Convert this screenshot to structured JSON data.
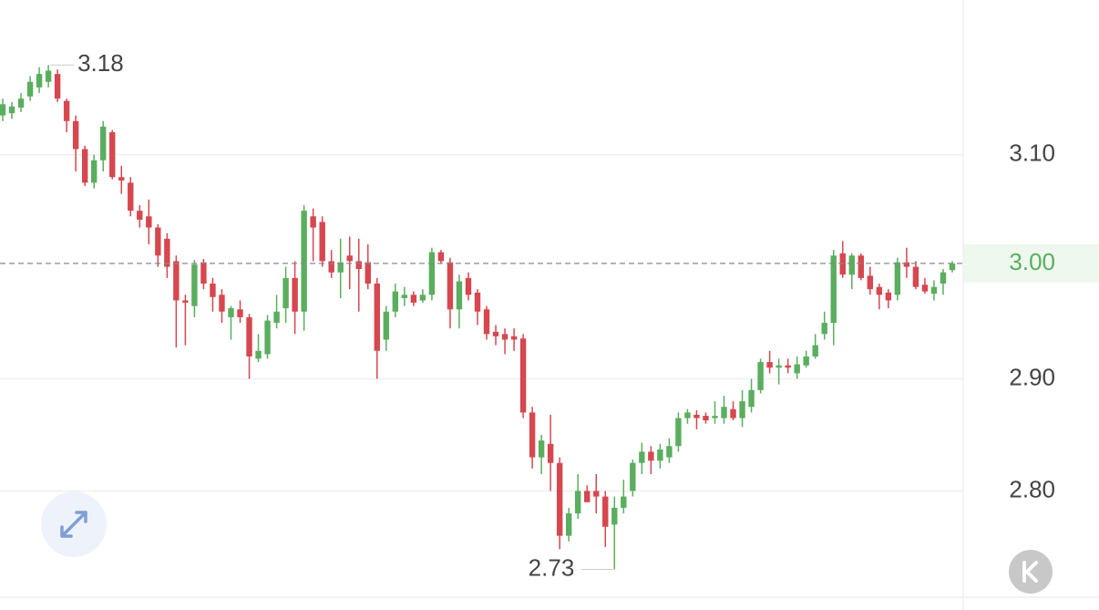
{
  "chart_data": {
    "type": "candlestick",
    "open": [
      3.135,
      3.137,
      3.142,
      3.152,
      3.16,
      3.165,
      3.172,
      3.148,
      3.13,
      3.105,
      3.075,
      3.095,
      3.12,
      3.08,
      3.075,
      3.05,
      3.045,
      3.035,
      3.025,
      3.005,
      2.97,
      2.965,
      3.004,
      2.985,
      2.975,
      2.955,
      2.962,
      2.955,
      2.918,
      2.922,
      2.95,
      2.963,
      2.99,
      2.96,
      3.045,
      3.04,
      3.005,
      2.995,
      3.01,
      3.005,
      3.004,
      2.985,
      2.935,
      2.96,
      2.972,
      2.975,
      2.97,
      2.975,
      3.013,
      3.004,
      2.962,
      2.99,
      2.977,
      2.962,
      2.942,
      2.94,
      2.938,
      2.936,
      2.87,
      2.83,
      2.842,
      2.825,
      2.76,
      2.78,
      2.8,
      2.8,
      2.795,
      2.77,
      2.785,
      2.8,
      2.825,
      2.835,
      2.827,
      2.83,
      2.84,
      2.865,
      2.868,
      2.867,
      2.865,
      2.865,
      2.873,
      2.865,
      2.875,
      2.89,
      2.915,
      2.91,
      2.912,
      2.905,
      2.912,
      2.92,
      2.94,
      2.95,
      3.012,
      2.993,
      3.01,
      2.992,
      2.982,
      2.977,
      2.975,
      3.004,
      3.0,
      2.984,
      2.976,
      2.985,
      2.997
    ],
    "high": [
      3.15,
      3.147,
      3.155,
      3.17,
      3.178,
      3.18,
      3.176,
      3.15,
      3.135,
      3.108,
      3.1,
      3.13,
      3.122,
      3.09,
      3.08,
      3.055,
      3.06,
      3.038,
      3.03,
      3.01,
      2.975,
      3.006,
      3.007,
      2.99,
      2.98,
      2.965,
      2.97,
      2.958,
      2.94,
      2.957,
      2.975,
      3.0,
      3.005,
      3.055,
      3.052,
      3.045,
      3.015,
      3.025,
      3.027,
      3.025,
      3.02,
      2.99,
      2.965,
      2.985,
      2.982,
      2.978,
      2.98,
      3.017,
      3.015,
      3.008,
      2.993,
      2.995,
      2.98,
      2.965,
      2.948,
      2.945,
      2.945,
      2.94,
      2.875,
      2.85,
      2.868,
      2.83,
      2.785,
      2.815,
      2.805,
      2.815,
      2.8,
      2.795,
      2.81,
      2.828,
      2.843,
      2.84,
      2.842,
      2.847,
      2.87,
      2.873,
      2.872,
      2.87,
      2.88,
      2.885,
      2.88,
      2.89,
      2.9,
      2.918,
      2.925,
      2.918,
      2.918,
      2.92,
      2.925,
      2.94,
      2.96,
      3.015,
      3.023,
      3.012,
      3.012,
      3.0,
      2.985,
      2.98,
      3.008,
      3.017,
      3.005,
      2.99,
      2.988,
      2.998,
      3.005
    ],
    "low": [
      3.13,
      3.132,
      3.138,
      3.148,
      3.155,
      3.16,
      3.147,
      3.12,
      3.085,
      3.072,
      3.07,
      3.085,
      3.078,
      3.065,
      3.045,
      3.035,
      3.02,
      3.0,
      2.99,
      2.928,
      2.93,
      2.955,
      2.98,
      2.96,
      2.95,
      2.935,
      2.95,
      2.9,
      2.915,
      2.918,
      2.945,
      2.95,
      2.94,
      2.943,
      3.005,
      3.0,
      2.99,
      2.972,
      2.98,
      2.96,
      2.98,
      2.9,
      2.925,
      2.955,
      2.965,
      2.965,
      2.968,
      2.97,
      3.003,
      2.945,
      2.945,
      2.97,
      2.948,
      2.935,
      2.93,
      2.922,
      2.925,
      2.865,
      2.82,
      2.815,
      2.8,
      2.748,
      2.755,
      2.775,
      2.79,
      2.78,
      2.75,
      2.73,
      2.78,
      2.795,
      2.815,
      2.815,
      2.82,
      2.825,
      2.835,
      2.86,
      2.855,
      2.86,
      2.86,
      2.86,
      2.863,
      2.857,
      2.87,
      2.887,
      2.905,
      2.895,
      2.905,
      2.9,
      2.91,
      2.918,
      2.935,
      2.93,
      2.99,
      2.98,
      2.988,
      2.975,
      2.962,
      2.963,
      2.97,
      2.99,
      2.98,
      2.976,
      2.97,
      2.975,
      2.995
    ],
    "close": [
      3.145,
      3.143,
      3.15,
      3.165,
      3.172,
      3.175,
      3.15,
      3.13,
      3.105,
      3.075,
      3.095,
      3.125,
      3.08,
      3.077,
      3.05,
      3.042,
      3.035,
      3.01,
      3.0,
      2.97,
      2.968,
      3.002,
      2.985,
      2.973,
      2.96,
      2.963,
      2.955,
      2.92,
      2.925,
      2.952,
      2.96,
      2.99,
      2.96,
      3.05,
      3.035,
      3.005,
      2.995,
      3.004,
      3.005,
      2.998,
      2.985,
      2.925,
      2.96,
      2.978,
      2.975,
      2.968,
      2.975,
      3.013,
      3.005,
      2.962,
      2.987,
      2.975,
      2.96,
      2.94,
      2.938,
      2.935,
      2.935,
      2.87,
      2.83,
      2.845,
      2.825,
      2.76,
      2.78,
      2.8,
      2.79,
      2.795,
      2.768,
      2.785,
      2.795,
      2.825,
      2.835,
      2.827,
      2.837,
      2.84,
      2.865,
      2.87,
      2.865,
      2.863,
      2.867,
      2.875,
      2.865,
      2.88,
      2.89,
      2.915,
      2.91,
      2.912,
      2.91,
      2.913,
      2.92,
      2.93,
      2.95,
      3.01,
      2.993,
      3.01,
      2.99,
      2.98,
      2.975,
      2.97,
      3.004,
      3.0,
      2.982,
      2.978,
      2.982,
      2.995,
      3.003
    ],
    "up_color": "#5aae5e",
    "down_color": "#d6474f",
    "ylim": [
      2.706,
      3.238
    ],
    "yticks": [
      {
        "value": 2.8,
        "label": "2.80"
      },
      {
        "value": 2.9,
        "label": "2.90"
      },
      {
        "value": 3.1,
        "label": "3.10"
      }
    ],
    "grid": true,
    "last_price": {
      "value": 3.003,
      "label": "3.00"
    },
    "high_label": {
      "value": 3.18,
      "label": "3.18"
    },
    "low_label": {
      "value": 2.73,
      "label": "2.73"
    }
  }
}
